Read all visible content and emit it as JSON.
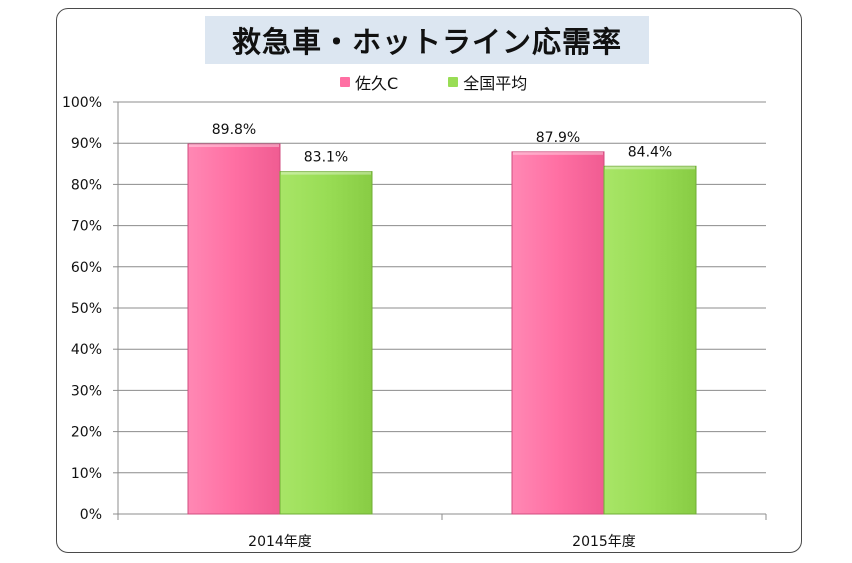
{
  "chart_data": {
    "type": "bar",
    "title": "救急車・ホットライン応需率",
    "categories": [
      "2014年度",
      "2015年度"
    ],
    "series": [
      {
        "name": "佐久C",
        "values": [
          89.8,
          87.9
        ],
        "labels": [
          "89.8%",
          "87.9%"
        ],
        "color": "#ff6fa3"
      },
      {
        "name": "全国平均",
        "values": [
          83.1,
          84.4
        ],
        "labels": [
          "83.1%",
          "84.4%"
        ],
        "color": "#99dd55"
      }
    ],
    "ylim": [
      0,
      100
    ],
    "yticks": [
      "0%",
      "10%",
      "20%",
      "30%",
      "40%",
      "50%",
      "60%",
      "70%",
      "80%",
      "90%",
      "100%"
    ],
    "grid": true,
    "legend_position": "top"
  }
}
